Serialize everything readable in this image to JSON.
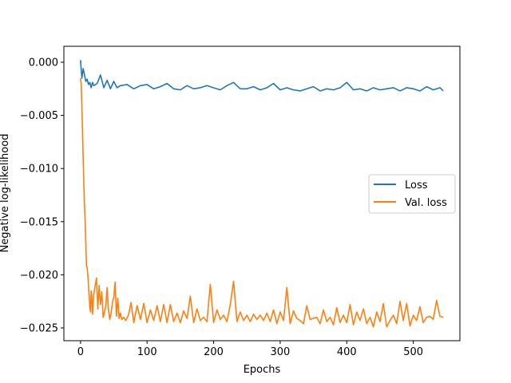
{
  "chart_data": {
    "type": "line",
    "title": "",
    "xlabel": "Epochs",
    "ylabel": "Negative log-likelihood",
    "xlim": [
      -25,
      570
    ],
    "ylim": [
      -0.0262,
      0.0015
    ],
    "xticks": [
      0,
      100,
      200,
      300,
      400,
      500
    ],
    "xtick_labels": [
      "0",
      "100",
      "200",
      "300",
      "400",
      "500"
    ],
    "yticks": [
      0.0,
      -0.005,
      -0.01,
      -0.015,
      -0.02,
      -0.025
    ],
    "ytick_labels": [
      "0.000",
      "−0.005",
      "−0.010",
      "−0.015",
      "−0.020",
      "−0.025"
    ],
    "grid": false,
    "legend_position": "center-right",
    "series": [
      {
        "name": "Loss",
        "color": "#1f77b4",
        "x": [
          0,
          2,
          4,
          6,
          8,
          10,
          12,
          14,
          16,
          18,
          20,
          25,
          30,
          35,
          40,
          45,
          50,
          55,
          60,
          70,
          80,
          90,
          100,
          110,
          120,
          130,
          140,
          150,
          160,
          170,
          180,
          190,
          200,
          210,
          220,
          230,
          240,
          250,
          260,
          270,
          280,
          290,
          300,
          310,
          320,
          330,
          340,
          350,
          360,
          370,
          380,
          390,
          400,
          410,
          420,
          430,
          440,
          450,
          460,
          470,
          480,
          490,
          500,
          510,
          520,
          530,
          540,
          545
        ],
        "y": [
          0.0002,
          -0.0015,
          -0.0006,
          -0.0012,
          -0.0018,
          -0.0016,
          -0.0021,
          -0.0019,
          -0.0024,
          -0.0019,
          -0.0022,
          -0.002,
          -0.0012,
          -0.0024,
          -0.0017,
          -0.0025,
          -0.0018,
          -0.0024,
          -0.0022,
          -0.0021,
          -0.0025,
          -0.0022,
          -0.0021,
          -0.0025,
          -0.0023,
          -0.002,
          -0.0025,
          -0.0026,
          -0.0022,
          -0.0025,
          -0.0024,
          -0.0022,
          -0.0024,
          -0.0026,
          -0.0022,
          -0.0019,
          -0.0025,
          -0.0025,
          -0.0023,
          -0.0026,
          -0.0024,
          -0.002,
          -0.0026,
          -0.0024,
          -0.0026,
          -0.0027,
          -0.0025,
          -0.0023,
          -0.0027,
          -0.0025,
          -0.0026,
          -0.0024,
          -0.0019,
          -0.0026,
          -0.0025,
          -0.0027,
          -0.0024,
          -0.0026,
          -0.0025,
          -0.0024,
          -0.0027,
          -0.0024,
          -0.0025,
          -0.0027,
          -0.0023,
          -0.0026,
          -0.0024,
          -0.0027
        ]
      },
      {
        "name": "Val. loss",
        "color": "#ff7f0e",
        "x": [
          0,
          1,
          2,
          3,
          4,
          5,
          6,
          7,
          8,
          9,
          10,
          11,
          12,
          13,
          14,
          15,
          16,
          17,
          18,
          20,
          22,
          24,
          26,
          28,
          30,
          32,
          34,
          36,
          38,
          40,
          42,
          44,
          46,
          48,
          50,
          52,
          54,
          56,
          58,
          60,
          62,
          65,
          68,
          72,
          76,
          80,
          85,
          90,
          95,
          100,
          105,
          110,
          115,
          120,
          125,
          130,
          135,
          140,
          145,
          150,
          155,
          160,
          165,
          170,
          175,
          180,
          185,
          190,
          195,
          200,
          205,
          210,
          215,
          220,
          225,
          230,
          235,
          240,
          245,
          250,
          255,
          260,
          265,
          270,
          275,
          280,
          285,
          290,
          295,
          300,
          305,
          310,
          315,
          320,
          325,
          330,
          335,
          340,
          345,
          350,
          355,
          360,
          365,
          370,
          375,
          380,
          385,
          390,
          395,
          400,
          405,
          410,
          415,
          420,
          425,
          430,
          435,
          440,
          445,
          450,
          455,
          460,
          465,
          470,
          475,
          480,
          485,
          490,
          495,
          500,
          505,
          510,
          515,
          520,
          525,
          530,
          535,
          540,
          545
        ],
        "y": [
          -0.0015,
          -0.002,
          -0.004,
          -0.0065,
          -0.009,
          -0.0115,
          -0.0135,
          -0.015,
          -0.017,
          -0.0192,
          -0.0193,
          -0.02,
          -0.021,
          -0.022,
          -0.023,
          -0.0235,
          -0.0215,
          -0.022,
          -0.0237,
          -0.0218,
          -0.021,
          -0.0203,
          -0.0232,
          -0.021,
          -0.0228,
          -0.0216,
          -0.024,
          -0.0235,
          -0.0229,
          -0.0212,
          -0.0233,
          -0.0242,
          -0.0236,
          -0.0226,
          -0.0221,
          -0.0207,
          -0.0239,
          -0.0222,
          -0.0241,
          -0.0236,
          -0.0242,
          -0.024,
          -0.0243,
          -0.0238,
          -0.0226,
          -0.0245,
          -0.0229,
          -0.0242,
          -0.0227,
          -0.0245,
          -0.0233,
          -0.0243,
          -0.0229,
          -0.0244,
          -0.0228,
          -0.0245,
          -0.0228,
          -0.0244,
          -0.0236,
          -0.0245,
          -0.0234,
          -0.0241,
          -0.022,
          -0.0245,
          -0.0232,
          -0.0243,
          -0.024,
          -0.0244,
          -0.0209,
          -0.0245,
          -0.0233,
          -0.0242,
          -0.0238,
          -0.0244,
          -0.0228,
          -0.0206,
          -0.0244,
          -0.0235,
          -0.0243,
          -0.0238,
          -0.0244,
          -0.0237,
          -0.0242,
          -0.0238,
          -0.0243,
          -0.0236,
          -0.0244,
          -0.0233,
          -0.0246,
          -0.0235,
          -0.0243,
          -0.0212,
          -0.0246,
          -0.0234,
          -0.0241,
          -0.0243,
          -0.0246,
          -0.0229,
          -0.0242,
          -0.0241,
          -0.024,
          -0.0246,
          -0.0233,
          -0.0244,
          -0.024,
          -0.0247,
          -0.0231,
          -0.0245,
          -0.0238,
          -0.0245,
          -0.0228,
          -0.0247,
          -0.0235,
          -0.0243,
          -0.0232,
          -0.0246,
          -0.024,
          -0.0249,
          -0.0235,
          -0.0244,
          -0.0227,
          -0.0249,
          -0.0243,
          -0.0238,
          -0.0246,
          -0.0225,
          -0.0243,
          -0.0227,
          -0.0248,
          -0.0238,
          -0.0243,
          -0.023,
          -0.0245,
          -0.024,
          -0.0239,
          -0.0242,
          -0.0224,
          -0.0239,
          -0.024
        ]
      }
    ]
  }
}
